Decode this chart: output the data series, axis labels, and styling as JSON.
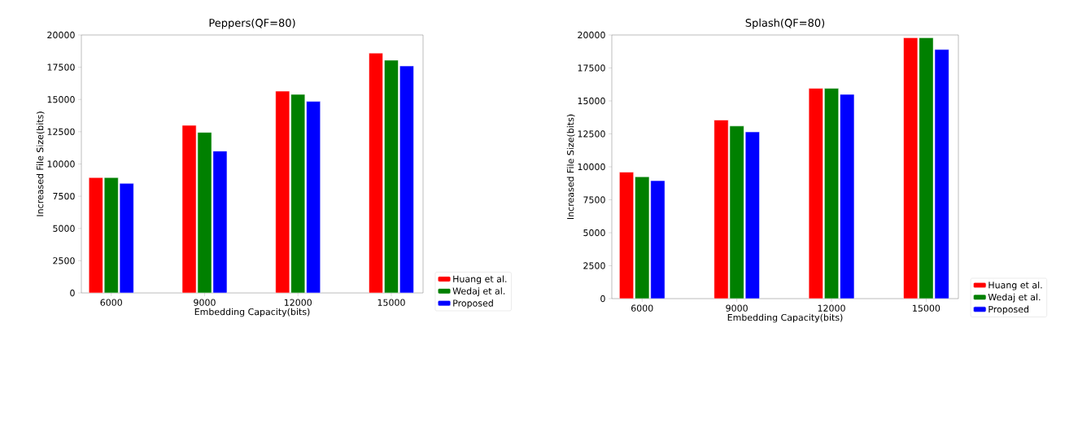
{
  "chart_data": [
    {
      "type": "bar",
      "title": "Peppers(QF=80)",
      "xlabel": "Embedding Capacity(bits)",
      "ylabel": "Increased File Size(bits)",
      "categories": [
        "6000",
        "9000",
        "12000",
        "15000"
      ],
      "series": [
        {
          "name": "Huang et al.",
          "color": "#ff0000",
          "values": [
            8950,
            13000,
            15650,
            18600
          ]
        },
        {
          "name": "Wedaj et al.",
          "color": "#008000",
          "values": [
            8950,
            12450,
            15400,
            18050
          ]
        },
        {
          "name": "Proposed",
          "color": "#0000ff",
          "values": [
            8500,
            11000,
            14850,
            17600
          ]
        }
      ],
      "ylim": [
        0,
        20000
      ],
      "yticks": [
        0,
        2500,
        5000,
        7500,
        10000,
        12500,
        15000,
        17500,
        20000
      ],
      "legend": "bottom right"
    },
    {
      "type": "bar",
      "title": "Splash(QF=80)",
      "xlabel": "Embedding Capacity(bits)",
      "ylabel": "Increased File Size(bits)",
      "categories": [
        "6000",
        "9000",
        "12000",
        "15000"
      ],
      "series": [
        {
          "name": "Huang et al.",
          "color": "#ff0000",
          "values": [
            9600,
            13550,
            15950,
            19800
          ]
        },
        {
          "name": "Wedaj et al.",
          "color": "#008000",
          "values": [
            9250,
            13100,
            15950,
            19800
          ]
        },
        {
          "name": "Proposed",
          "color": "#0000ff",
          "values": [
            8950,
            12650,
            15500,
            18900
          ]
        }
      ],
      "ylim": [
        0,
        20000
      ],
      "yticks": [
        0,
        2500,
        5000,
        7500,
        10000,
        12500,
        15000,
        17500,
        20000
      ],
      "legend": "bottom right"
    }
  ]
}
